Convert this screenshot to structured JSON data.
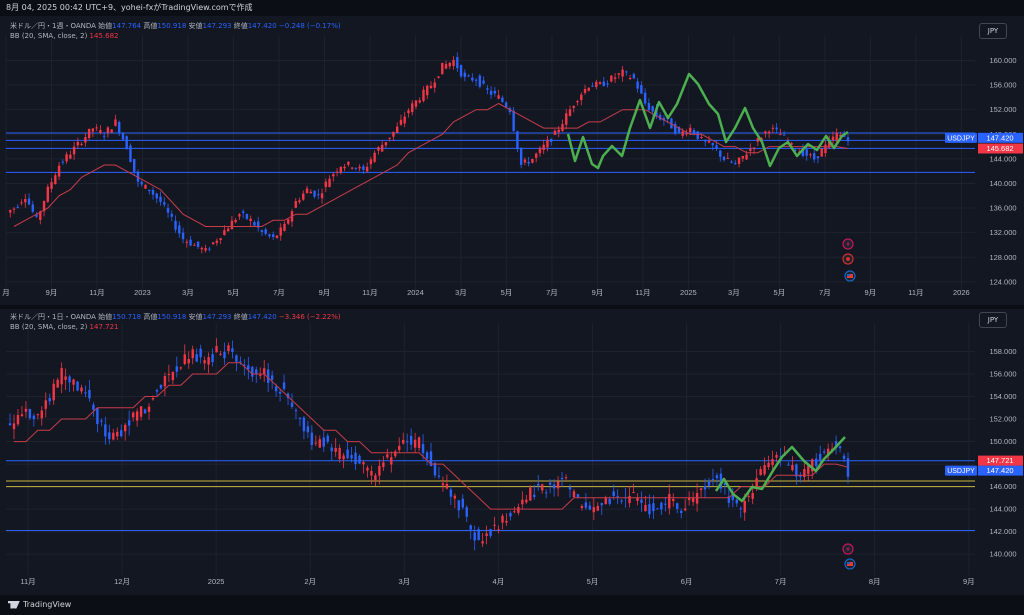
{
  "header": {
    "text": "8月 04, 2025 00:42 UTC+9、yohei-fxがTradingView.comで作成"
  },
  "footer": {
    "brand": "TradingView"
  },
  "colors": {
    "up": "#2962ff",
    "down": "#f23645",
    "bb": "#c83c4a",
    "green": "#4caf50",
    "hline": "#2962ff",
    "yellow": "#c9b43a"
  },
  "charts": [
    {
      "legend": {
        "title": "米ドル／円・1週・OANDA",
        "o_lbl": "始値",
        "o": "147.764",
        "h_lbl": "高値",
        "h": "150.918",
        "l_lbl": "安値",
        "l": "147.293",
        "c_lbl": "終値",
        "c": "147.420",
        "chg": "−0.248 (−0.17%)"
      },
      "bb_legend": {
        "label": "BB (20, SMA, close, 2)",
        "value": "145.682"
      },
      "currency": "JPY",
      "symbol_tag": "USDJPY",
      "price_tag": "147.420",
      "bb_tag": "145.682"
    },
    {
      "legend": {
        "title": "米ドル／円・1日・OANDA",
        "o_lbl": "始値",
        "o": "150.718",
        "h_lbl": "高値",
        "h": "150.918",
        "l_lbl": "安値",
        "l": "147.293",
        "c_lbl": "終値",
        "c": "147.420",
        "chg": "−3.346 (−2.22%)"
      },
      "bb_legend": {
        "label": "BB (20, SMA, close, 2)",
        "value": "147.721"
      },
      "currency": "JPY",
      "symbol_tag": "USDJPY",
      "price_tag": "147.420",
      "bb_tag": "147.721"
    }
  ],
  "chart_data": [
    {
      "type": "candlestick",
      "title": "米ドル／円・1週・OANDA",
      "ylim": [
        123,
        163
      ],
      "y_ticks": [
        "124.000",
        "128.000",
        "132.000",
        "136.000",
        "140.000",
        "144.000",
        "148.000",
        "152.000",
        "156.000",
        "160.000"
      ],
      "x_ticks": [
        "月",
        "9月",
        "11月",
        "2023",
        "3月",
        "5月",
        "7月",
        "9月",
        "11月",
        "2024",
        "3月",
        "5月",
        "7月",
        "9月",
        "11月",
        "2025",
        "3月",
        "5月",
        "7月",
        "9月",
        "11月",
        "2026"
      ],
      "close_path": [
        136,
        138,
        134,
        139,
        143,
        145,
        147,
        149,
        148,
        150,
        146,
        140,
        139,
        137,
        134,
        131,
        130,
        129,
        131,
        133,
        135,
        134,
        132,
        131,
        133,
        137,
        139,
        138,
        141,
        143,
        143,
        142,
        145,
        147,
        149,
        152,
        154,
        156,
        159,
        160,
        157,
        157,
        155,
        154,
        152,
        143,
        144,
        146,
        148,
        151,
        154,
        156,
        156,
        157,
        158,
        157,
        153,
        151,
        150,
        148,
        149,
        147,
        146,
        144,
        143,
        145,
        147,
        149,
        148,
        146,
        145,
        144,
        146,
        148,
        147.42
      ],
      "bb_path": [
        133,
        134,
        135,
        136,
        138,
        139,
        141,
        142,
        143,
        143,
        142,
        141,
        140,
        139,
        137,
        135,
        134,
        133,
        133,
        133,
        133,
        133,
        133,
        134,
        134,
        135,
        135,
        136,
        137,
        138,
        139,
        140,
        141,
        142,
        143,
        145,
        146,
        147,
        148,
        150,
        151,
        152,
        152,
        153,
        152,
        151,
        150,
        149,
        149,
        149,
        149,
        150,
        150,
        151,
        152,
        152,
        152,
        151,
        150,
        149,
        148,
        148,
        147,
        146,
        146,
        145,
        145,
        146,
        146,
        146,
        146,
        146,
        146,
        146,
        145.682
      ],
      "hlines": [
        148.2,
        147.0,
        145.7,
        141.8
      ],
      "series": [
        {
          "name": "USDJPY",
          "last": 147.42
        },
        {
          "name": "BB",
          "last": 145.682
        }
      ]
    },
    {
      "type": "candlestick",
      "title": "米ドル／円・1日・OANDA",
      "ylim": [
        138.5,
        160
      ],
      "y_ticks": [
        "140.000",
        "142.000",
        "144.000",
        "146.000",
        "148.000",
        "150.000",
        "152.000",
        "154.000",
        "156.000",
        "158.000"
      ],
      "x_ticks": [
        "11月",
        "12月",
        "2025",
        "2月",
        "3月",
        "4月",
        "5月",
        "6月",
        "7月",
        "8月",
        "9月"
      ],
      "close_path": [
        152,
        153,
        152,
        154,
        156,
        155,
        154,
        152,
        150,
        151,
        152,
        153,
        155,
        156,
        157,
        158,
        157,
        158,
        158,
        157,
        156,
        156,
        155,
        154,
        152,
        150,
        150,
        149,
        149,
        148,
        147,
        148,
        149,
        150,
        150,
        148,
        146,
        145,
        143,
        141,
        142,
        143,
        144,
        145,
        146,
        146,
        147,
        145,
        144,
        144,
        145,
        145,
        145,
        144,
        144,
        145,
        144,
        145,
        146,
        147,
        145,
        144,
        146,
        148,
        149,
        148,
        147,
        148,
        149,
        150,
        147.42
      ],
      "bb_path": [
        150,
        150,
        151,
        151,
        152,
        152,
        152,
        153,
        153,
        153,
        153,
        154,
        154,
        155,
        155,
        156,
        156,
        156,
        157,
        157,
        156,
        156,
        155,
        154,
        153,
        152,
        151,
        151,
        150,
        150,
        149,
        149,
        149,
        149,
        149,
        148,
        148,
        147,
        146,
        145,
        144,
        144,
        144,
        144,
        144,
        144,
        144,
        145,
        145,
        145,
        145,
        145,
        145,
        145,
        145,
        145,
        145,
        145,
        145,
        145,
        145,
        146,
        146,
        146,
        147,
        147,
        147,
        147,
        148,
        148,
        147.721
      ],
      "hlines": [
        148.3,
        146.5,
        146.0,
        142.1
      ],
      "series": [
        {
          "name": "USDJPY",
          "last": 147.42
        },
        {
          "name": "BB",
          "last": 147.721
        }
      ]
    }
  ]
}
